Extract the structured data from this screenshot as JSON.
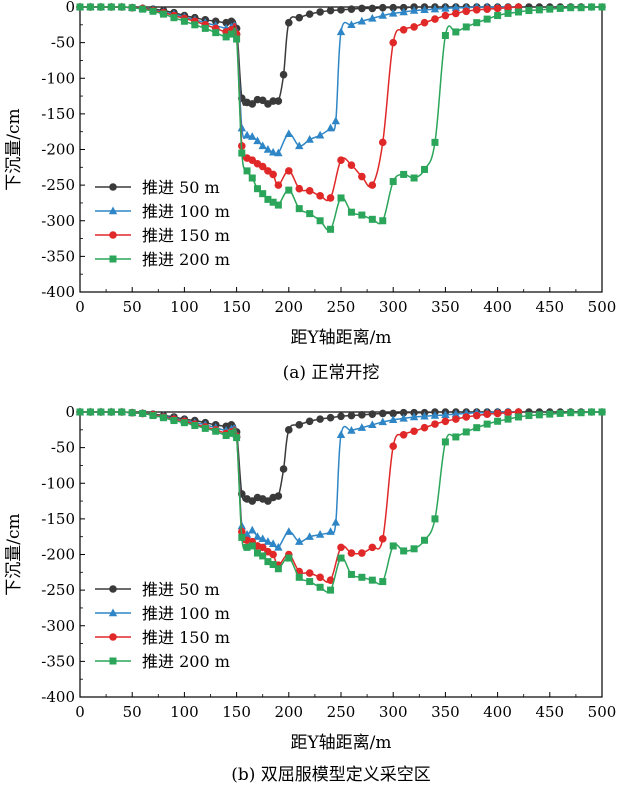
{
  "chart_data": [
    {
      "type": "line",
      "caption": "(a)  正常开挖",
      "xlabel": "距Y轴距离/m",
      "ylabel": "下沉量/cm",
      "xlim": [
        0,
        500
      ],
      "ylim": [
        -400,
        0
      ],
      "xticks": [
        0,
        50,
        100,
        150,
        200,
        250,
        300,
        350,
        400,
        450,
        500
      ],
      "yticks": [
        0,
        -50,
        -100,
        -150,
        -200,
        -250,
        -300,
        -350,
        -400
      ],
      "legend_position": "lower-left",
      "grid": false,
      "series": [
        {
          "name": "推进 50 m",
          "color": "#3a3a3a",
          "marker": "circle",
          "x": [
            0,
            10,
            20,
            30,
            40,
            50,
            60,
            70,
            80,
            90,
            100,
            110,
            120,
            130,
            140,
            145,
            150,
            155,
            160,
            165,
            170,
            175,
            180,
            185,
            190,
            195,
            200,
            210,
            220,
            230,
            240,
            250,
            260,
            270,
            280,
            290,
            300,
            310,
            320,
            330,
            340,
            350,
            360,
            370,
            380,
            390,
            400,
            410,
            420,
            430,
            440,
            450,
            460,
            470,
            480,
            490,
            500
          ],
          "y": [
            0,
            0,
            0,
            0,
            0,
            -1,
            -2,
            -3,
            -5,
            -8,
            -12,
            -15,
            -18,
            -20,
            -22,
            -20,
            -30,
            -128,
            -134,
            -136,
            -130,
            -131,
            -136,
            -132,
            -132,
            -95,
            -22,
            -15,
            -10,
            -7,
            -5,
            -4,
            -3,
            -2,
            -2,
            -1,
            -1,
            -1,
            0,
            0,
            0,
            0,
            0,
            0,
            0,
            0,
            0,
            0,
            0,
            0,
            0,
            0,
            0,
            0,
            0,
            0,
            0
          ]
        },
        {
          "name": "推进 100 m",
          "color": "#2f86c6",
          "marker": "triangle",
          "x": [
            0,
            10,
            20,
            30,
            40,
            50,
            60,
            70,
            80,
            90,
            100,
            110,
            120,
            130,
            140,
            145,
            150,
            155,
            160,
            165,
            170,
            175,
            180,
            185,
            190,
            200,
            210,
            220,
            230,
            240,
            245,
            250,
            260,
            270,
            280,
            290,
            300,
            310,
            320,
            330,
            340,
            350,
            360,
            370,
            380,
            390,
            400,
            410,
            420
          ],
          "y": [
            0,
            0,
            0,
            0,
            0,
            -1,
            -2,
            -4,
            -7,
            -10,
            -14,
            -18,
            -22,
            -26,
            -30,
            -28,
            -35,
            -170,
            -180,
            -182,
            -188,
            -195,
            -200,
            -204,
            -205,
            -178,
            -195,
            -186,
            -180,
            -170,
            -160,
            -35,
            -25,
            -20,
            -16,
            -12,
            -9,
            -7,
            -5,
            -4,
            -3,
            -2,
            -1,
            -1,
            0,
            0,
            0,
            0,
            0
          ]
        },
        {
          "name": "推进 150 m",
          "color": "#e02828",
          "marker": "circle",
          "x": [
            0,
            10,
            20,
            30,
            40,
            50,
            60,
            70,
            80,
            90,
            100,
            110,
            120,
            130,
            140,
            145,
            150,
            155,
            160,
            165,
            170,
            175,
            180,
            185,
            190,
            200,
            210,
            220,
            230,
            240,
            250,
            260,
            270,
            280,
            290,
            300,
            310,
            320,
            330,
            340,
            350,
            360,
            370,
            380,
            390,
            400,
            410,
            420
          ],
          "y": [
            0,
            0,
            0,
            0,
            0,
            -1,
            -2,
            -5,
            -8,
            -12,
            -16,
            -20,
            -25,
            -30,
            -35,
            -32,
            -38,
            -195,
            -212,
            -215,
            -220,
            -224,
            -230,
            -235,
            -250,
            -230,
            -255,
            -258,
            -265,
            -268,
            -215,
            -222,
            -238,
            -250,
            -190,
            -50,
            -32,
            -28,
            -22,
            -17,
            -12,
            -9,
            -6,
            -4,
            -3,
            -2,
            -1,
            0
          ]
        },
        {
          "name": "推进 200 m",
          "color": "#2aa55a",
          "marker": "square",
          "x": [
            0,
            10,
            20,
            30,
            40,
            50,
            60,
            70,
            80,
            90,
            100,
            110,
            120,
            130,
            140,
            145,
            150,
            155,
            160,
            165,
            170,
            175,
            180,
            185,
            190,
            200,
            210,
            220,
            230,
            240,
            250,
            260,
            270,
            280,
            290,
            300,
            310,
            320,
            330,
            340,
            350,
            360,
            370,
            380,
            390,
            400,
            410,
            420,
            430,
            440,
            450,
            460,
            470,
            480,
            490,
            500
          ],
          "y": [
            0,
            0,
            0,
            0,
            0,
            -1,
            -3,
            -6,
            -10,
            -15,
            -20,
            -25,
            -30,
            -36,
            -42,
            -38,
            -45,
            -205,
            -230,
            -240,
            -255,
            -262,
            -270,
            -274,
            -278,
            -257,
            -283,
            -290,
            -300,
            -312,
            -268,
            -288,
            -292,
            -298,
            -300,
            -245,
            -235,
            -240,
            -228,
            -190,
            -40,
            -35,
            -28,
            -22,
            -17,
            -12,
            -9,
            -7,
            -5,
            -4,
            -3,
            -2,
            -1,
            -1,
            0,
            0
          ]
        }
      ]
    },
    {
      "type": "line",
      "caption": "(b)  双屈服模型定义采空区",
      "xlabel": "距Y轴距离/m",
      "ylabel": "下沉量/cm",
      "xlim": [
        0,
        500
      ],
      "ylim": [
        -400,
        0
      ],
      "xticks": [
        0,
        50,
        100,
        150,
        200,
        250,
        300,
        350,
        400,
        450,
        500
      ],
      "yticks": [
        0,
        -50,
        -100,
        -150,
        -200,
        -250,
        -300,
        -350,
        -400
      ],
      "legend_position": "lower-left",
      "grid": false,
      "series": [
        {
          "name": "推进 50 m",
          "color": "#3a3a3a",
          "marker": "circle",
          "x": [
            0,
            10,
            20,
            30,
            40,
            50,
            60,
            70,
            80,
            90,
            100,
            110,
            120,
            130,
            140,
            145,
            150,
            155,
            160,
            165,
            170,
            175,
            180,
            185,
            190,
            195,
            200,
            210,
            220,
            230,
            240,
            250,
            260,
            270,
            280,
            290,
            300,
            310,
            320,
            330,
            340,
            350,
            360,
            370,
            380,
            390,
            400,
            410,
            420,
            430,
            440,
            450,
            460,
            470,
            480,
            490,
            500
          ],
          "y": [
            0,
            0,
            0,
            0,
            0,
            -1,
            -2,
            -3,
            -5,
            -7,
            -10,
            -12,
            -15,
            -18,
            -20,
            -18,
            -28,
            -115,
            -122,
            -125,
            -120,
            -122,
            -125,
            -120,
            -118,
            -80,
            -25,
            -18,
            -13,
            -10,
            -8,
            -6,
            -5,
            -4,
            -3,
            -2,
            -2,
            -1,
            -1,
            -1,
            0,
            0,
            0,
            0,
            0,
            0,
            0,
            0,
            0,
            0,
            0,
            0,
            0,
            0,
            0,
            0,
            0
          ]
        },
        {
          "name": "推进 100 m",
          "color": "#2f86c6",
          "marker": "triangle",
          "x": [
            0,
            10,
            20,
            30,
            40,
            50,
            60,
            70,
            80,
            90,
            100,
            110,
            120,
            130,
            140,
            145,
            150,
            155,
            160,
            165,
            170,
            175,
            180,
            185,
            190,
            200,
            210,
            220,
            230,
            240,
            245,
            250,
            260,
            270,
            280,
            290,
            300,
            310,
            320,
            330,
            340,
            350,
            360,
            370,
            380,
            390,
            400,
            410,
            420
          ],
          "y": [
            0,
            0,
            0,
            0,
            0,
            -1,
            -2,
            -4,
            -6,
            -9,
            -12,
            -15,
            -18,
            -22,
            -26,
            -24,
            -32,
            -160,
            -172,
            -166,
            -175,
            -178,
            -182,
            -185,
            -190,
            -168,
            -182,
            -175,
            -172,
            -168,
            -155,
            -32,
            -26,
            -22,
            -18,
            -14,
            -11,
            -9,
            -7,
            -6,
            -5,
            -4,
            -3,
            -2,
            -1,
            -1,
            0,
            0,
            0
          ]
        },
        {
          "name": "推进 150 m",
          "color": "#e02828",
          "marker": "circle",
          "x": [
            0,
            10,
            20,
            30,
            40,
            50,
            60,
            70,
            80,
            90,
            100,
            110,
            120,
            130,
            140,
            145,
            150,
            155,
            160,
            165,
            170,
            175,
            180,
            185,
            190,
            200,
            210,
            220,
            230,
            240,
            250,
            260,
            270,
            280,
            290,
            300,
            310,
            320,
            330,
            340,
            350,
            360,
            370,
            380,
            390,
            400,
            410,
            420
          ],
          "y": [
            0,
            0,
            0,
            0,
            0,
            -1,
            -2,
            -4,
            -7,
            -10,
            -13,
            -17,
            -21,
            -25,
            -30,
            -28,
            -34,
            -168,
            -180,
            -182,
            -188,
            -190,
            -196,
            -200,
            -215,
            -200,
            -224,
            -226,
            -232,
            -236,
            -190,
            -198,
            -198,
            -190,
            -178,
            -48,
            -32,
            -27,
            -22,
            -17,
            -13,
            -10,
            -7,
            -5,
            -3,
            -2,
            -1,
            0
          ]
        },
        {
          "name": "推进 200 m",
          "color": "#2aa55a",
          "marker": "square",
          "x": [
            0,
            10,
            20,
            30,
            40,
            50,
            60,
            70,
            80,
            90,
            100,
            110,
            120,
            130,
            140,
            145,
            150,
            155,
            160,
            165,
            170,
            175,
            180,
            185,
            190,
            200,
            210,
            220,
            230,
            240,
            250,
            260,
            270,
            280,
            290,
            300,
            310,
            320,
            330,
            340,
            350,
            360,
            370,
            380,
            390,
            400,
            410,
            420,
            430,
            440,
            450,
            460,
            470,
            480,
            490,
            500
          ],
          "y": [
            0,
            0,
            0,
            0,
            0,
            -1,
            -2,
            -5,
            -8,
            -12,
            -15,
            -19,
            -23,
            -27,
            -33,
            -30,
            -36,
            -176,
            -190,
            -188,
            -198,
            -202,
            -210,
            -214,
            -220,
            -205,
            -232,
            -238,
            -246,
            -250,
            -205,
            -228,
            -232,
            -236,
            -238,
            -188,
            -195,
            -192,
            -180,
            -150,
            -42,
            -35,
            -28,
            -22,
            -17,
            -13,
            -10,
            -7,
            -5,
            -4,
            -3,
            -2,
            -1,
            -1,
            0,
            0
          ]
        }
      ]
    }
  ]
}
